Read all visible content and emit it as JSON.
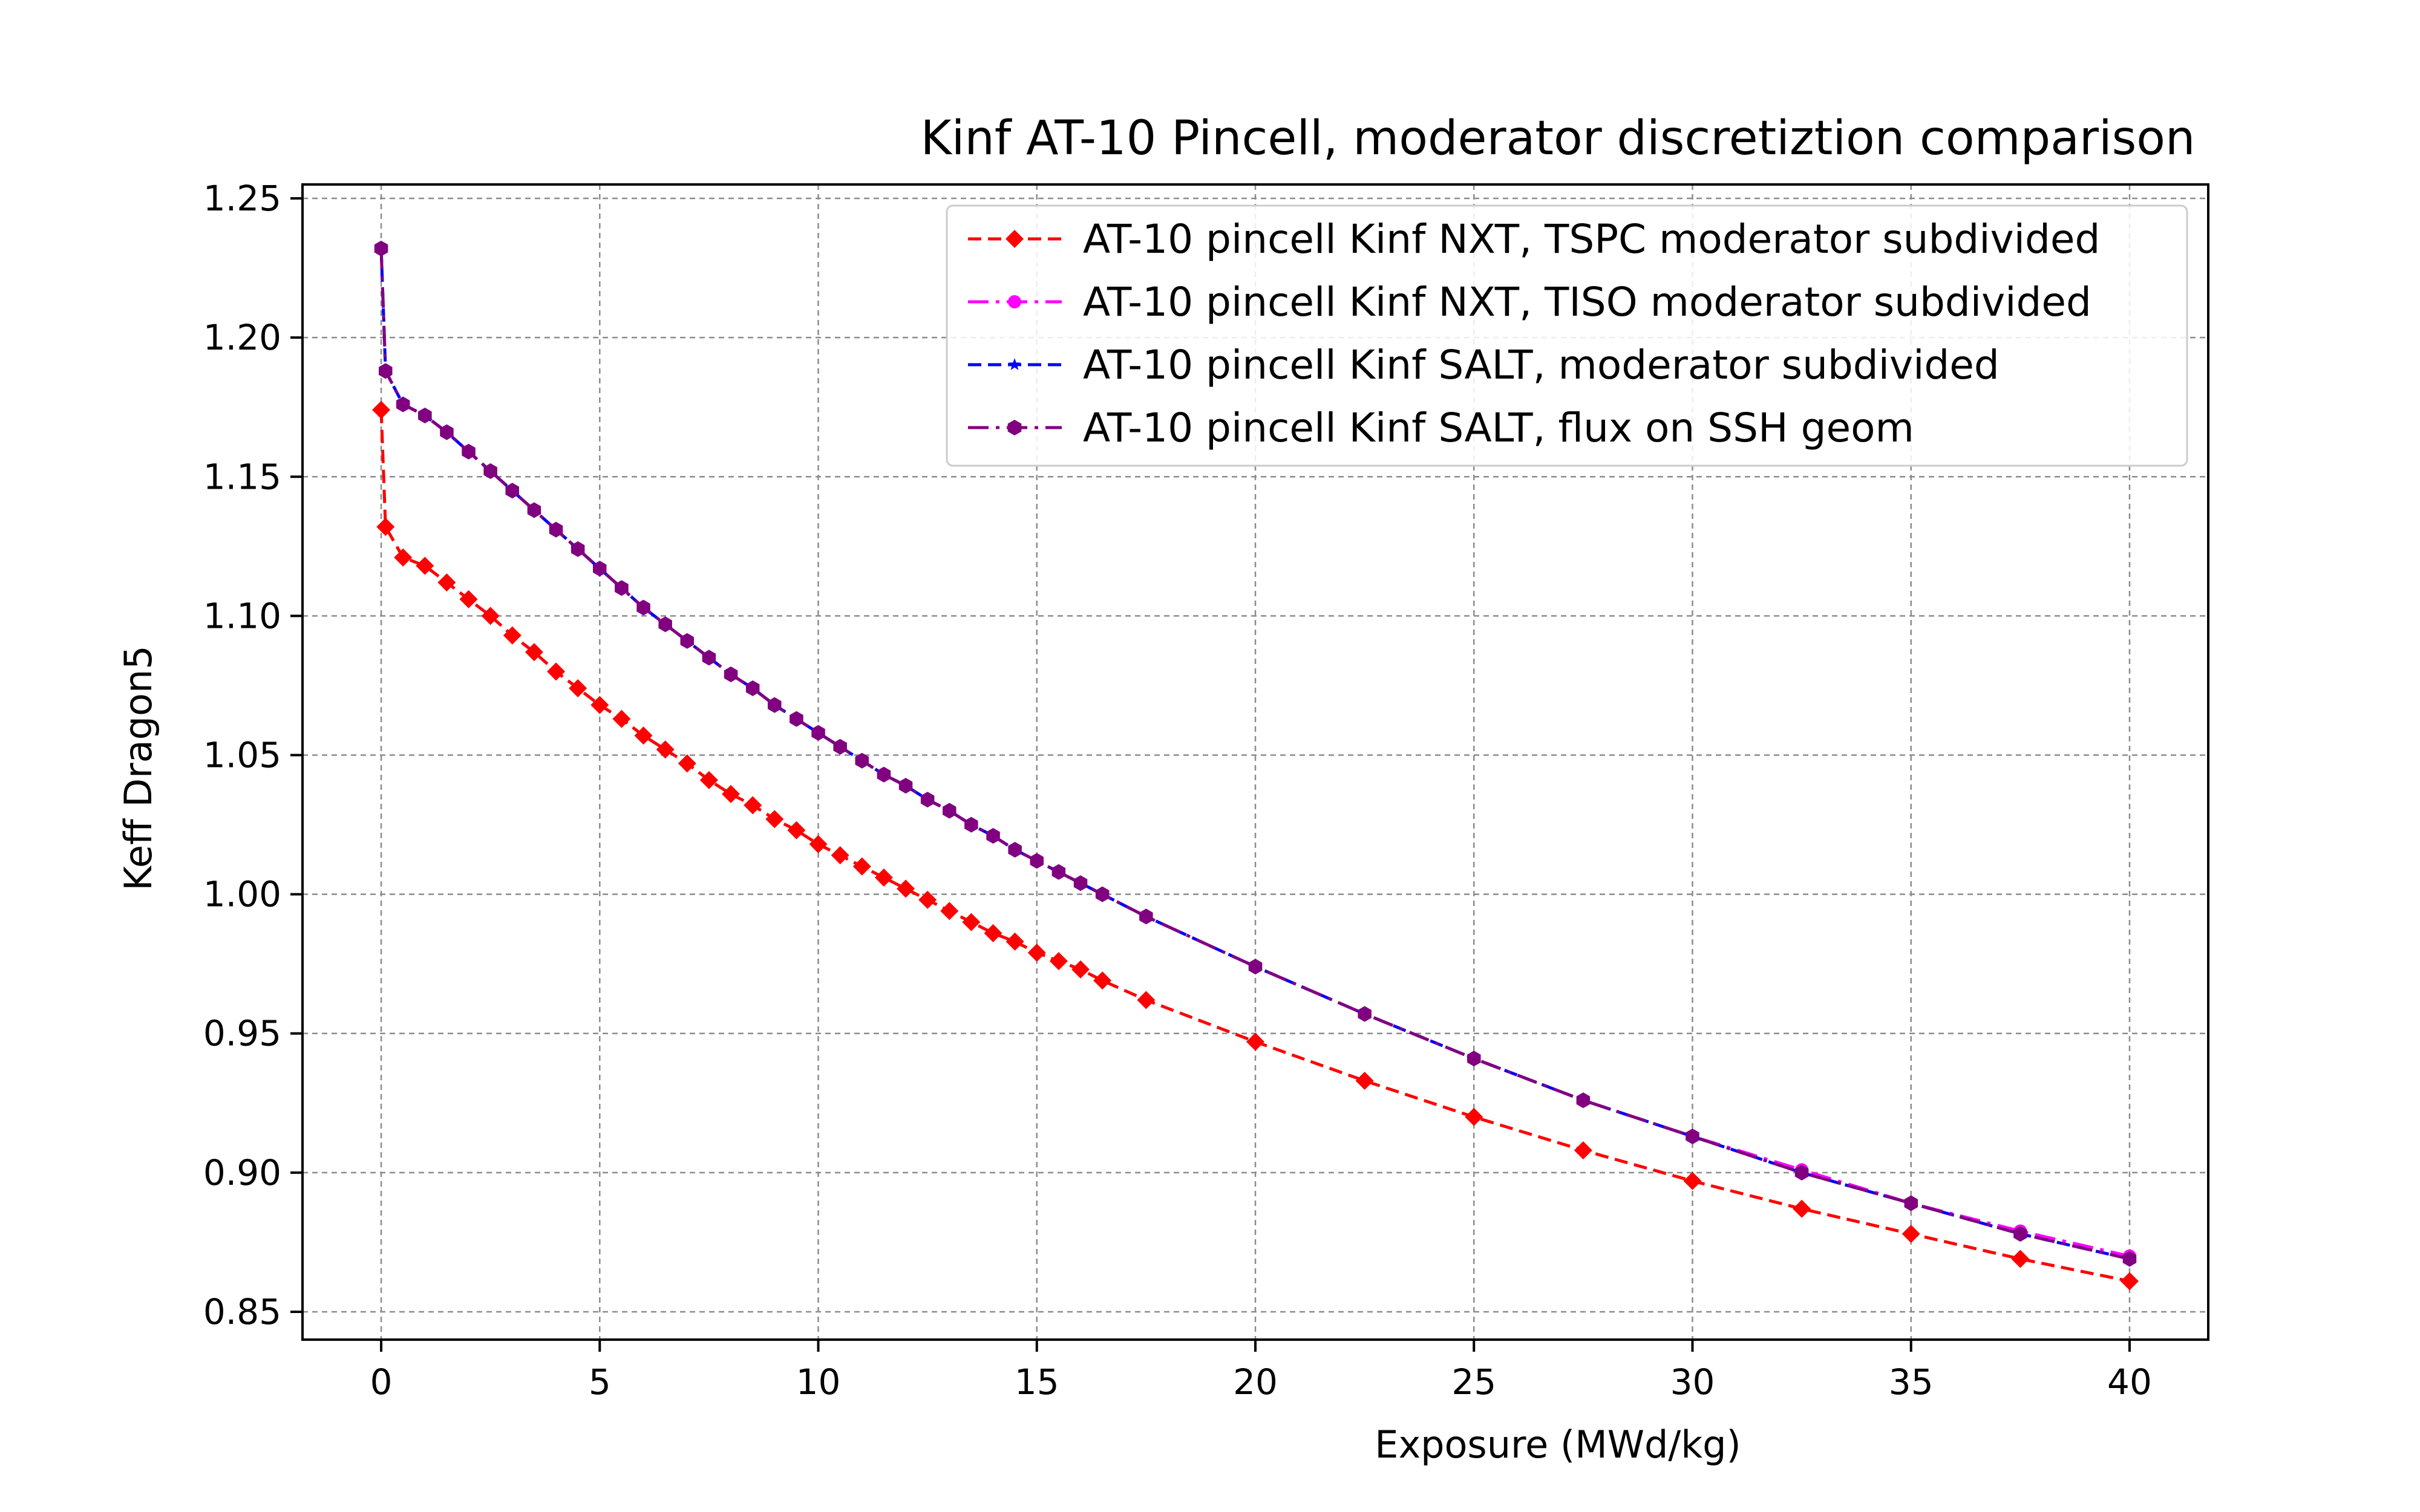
{
  "chart_data": {
    "type": "line",
    "title": "Kinf AT-10 Pincell, moderator discretiztion comparison",
    "xlabel": "Exposure (MWd/kg)",
    "ylabel": "Keff Dragon5",
    "xlim": [
      -1.8,
      41.8
    ],
    "ylim": [
      0.84,
      1.255
    ],
    "xticks": [
      0,
      5,
      10,
      15,
      20,
      25,
      30,
      35,
      40
    ],
    "yticks": [
      0.85,
      0.9,
      0.95,
      1.0,
      1.05,
      1.1,
      1.15,
      1.2,
      1.25
    ],
    "xtick_labels": [
      "0",
      "5",
      "10",
      "15",
      "20",
      "25",
      "30",
      "35",
      "40"
    ],
    "ytick_labels": [
      "0.85",
      "0.90",
      "0.95",
      "1.00",
      "1.05",
      "1.10",
      "1.15",
      "1.20",
      "1.25"
    ],
    "grid": true,
    "legend_position": "top-right",
    "x": [
      0,
      0.1,
      0.5,
      1,
      1.5,
      2,
      2.5,
      3,
      3.5,
      4,
      4.5,
      5,
      5.5,
      6,
      6.5,
      7,
      7.5,
      8,
      8.5,
      9,
      9.5,
      10,
      10.5,
      11,
      11.5,
      12,
      12.5,
      13,
      13.5,
      14,
      14.5,
      15,
      15.5,
      16,
      16.5,
      17.5,
      20,
      22.5,
      25,
      27.5,
      30,
      32.5,
      35,
      37.5,
      40
    ],
    "series": [
      {
        "name": "AT-10 pincell Kinf NXT, TSPC moderator subdivided",
        "color": "#ff0000",
        "marker": "diamond",
        "dash": "dashed",
        "values": [
          1.174,
          1.132,
          1.121,
          1.118,
          1.112,
          1.106,
          1.1,
          1.093,
          1.087,
          1.08,
          1.074,
          1.068,
          1.063,
          1.057,
          1.052,
          1.047,
          1.041,
          1.036,
          1.032,
          1.027,
          1.023,
          1.018,
          1.014,
          1.01,
          1.006,
          1.002,
          0.998,
          0.994,
          0.99,
          0.986,
          0.983,
          0.979,
          0.976,
          0.973,
          0.969,
          0.962,
          0.947,
          0.933,
          0.92,
          0.908,
          0.897,
          0.887,
          0.878,
          0.869,
          0.861
        ]
      },
      {
        "name": "AT-10 pincell Kinf NXT, TISO moderator subdivided",
        "color": "#ff00ff",
        "marker": "circle",
        "dash": "dashdot",
        "values": [
          1.232,
          1.188,
          1.176,
          1.172,
          1.166,
          1.159,
          1.152,
          1.145,
          1.138,
          1.131,
          1.124,
          1.117,
          1.11,
          1.103,
          1.097,
          1.091,
          1.085,
          1.079,
          1.074,
          1.068,
          1.063,
          1.058,
          1.053,
          1.048,
          1.043,
          1.039,
          1.034,
          1.03,
          1.025,
          1.021,
          1.016,
          1.012,
          1.008,
          1.004,
          1.0,
          0.992,
          0.974,
          0.957,
          0.941,
          0.926,
          0.913,
          0.901,
          0.889,
          0.879,
          0.87
        ]
      },
      {
        "name": "AT-10 pincell Kinf SALT, moderator subdivided",
        "color": "#0000ff",
        "marker": "star",
        "dash": "dashed",
        "values": [
          1.232,
          1.188,
          1.176,
          1.172,
          1.166,
          1.159,
          1.152,
          1.145,
          1.138,
          1.131,
          1.124,
          1.117,
          1.11,
          1.103,
          1.097,
          1.091,
          1.085,
          1.079,
          1.074,
          1.068,
          1.063,
          1.058,
          1.053,
          1.048,
          1.043,
          1.039,
          1.034,
          1.03,
          1.025,
          1.021,
          1.016,
          1.012,
          1.008,
          1.004,
          1.0,
          0.992,
          0.974,
          0.957,
          0.941,
          0.926,
          0.913,
          0.9,
          0.889,
          0.878,
          0.869
        ]
      },
      {
        "name": "AT-10 pincell Kinf SALT, flux on SSH geom",
        "color": "#800080",
        "marker": "hexagon",
        "dash": "dashdot",
        "values": [
          1.232,
          1.188,
          1.176,
          1.172,
          1.166,
          1.159,
          1.152,
          1.145,
          1.138,
          1.131,
          1.124,
          1.117,
          1.11,
          1.103,
          1.097,
          1.091,
          1.085,
          1.079,
          1.074,
          1.068,
          1.063,
          1.058,
          1.053,
          1.048,
          1.043,
          1.039,
          1.034,
          1.03,
          1.025,
          1.021,
          1.016,
          1.012,
          1.008,
          1.004,
          1.0,
          0.992,
          0.974,
          0.957,
          0.941,
          0.926,
          0.913,
          0.9,
          0.889,
          0.878,
          0.869
        ]
      }
    ]
  }
}
